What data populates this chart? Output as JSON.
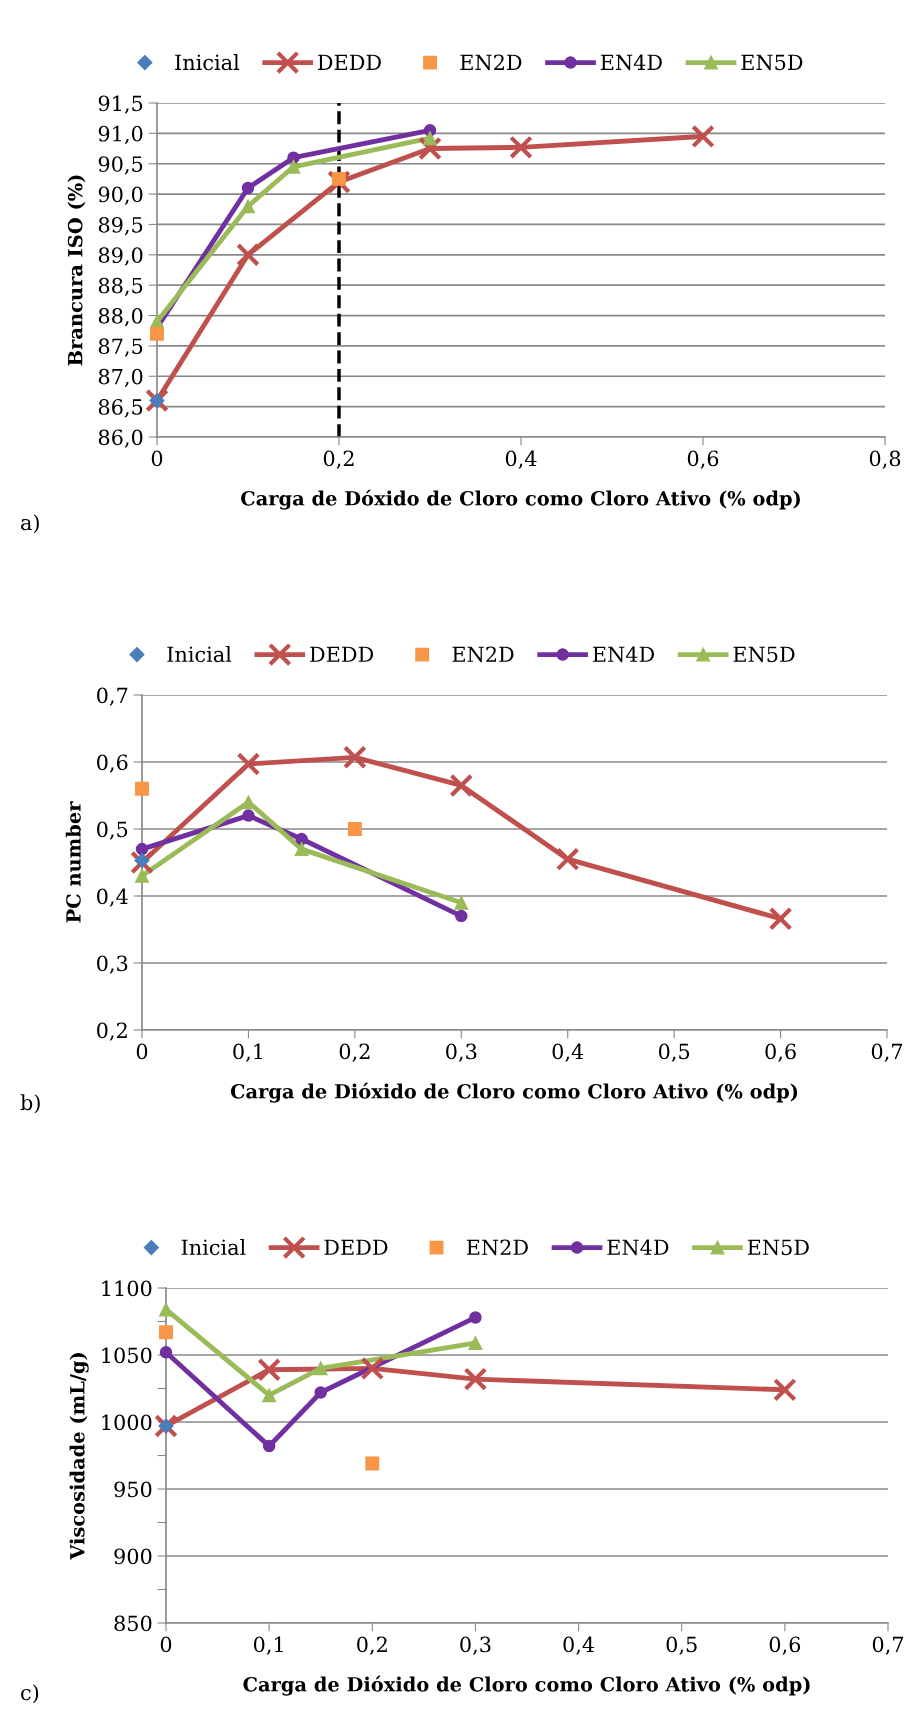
{
  "chart_data": [
    {
      "type": "line",
      "xlabel": "Carga de Dóxido de Cloro como Cloro Ativo (% odp)",
      "ylabel": "Brancura ISO (%)",
      "xlim": [
        0,
        0.8
      ],
      "xticks": [
        {
          "value": 0,
          "label": "0"
        },
        {
          "value": 0.2,
          "label": "0,2"
        },
        {
          "value": 0.4,
          "label": "0,4"
        },
        {
          "value": 0.6,
          "label": "0,6"
        },
        {
          "value": 0.8,
          "label": "0,8"
        }
      ],
      "ylim": [
        86,
        91.5
      ],
      "yticks": [
        {
          "value": 86,
          "label": "86,0"
        },
        {
          "value": 86.5,
          "label": "86,5"
        },
        {
          "value": 87,
          "label": "87,0"
        },
        {
          "value": 87.5,
          "label": "87,5"
        },
        {
          "value": 88,
          "label": "88,0"
        },
        {
          "value": 88.5,
          "label": "88,5"
        },
        {
          "value": 89,
          "label": "89,0"
        },
        {
          "value": 89.5,
          "label": "89,5"
        },
        {
          "value": 90,
          "label": "90,0"
        },
        {
          "value": 90.5,
          "label": "90,5"
        },
        {
          "value": 91,
          "label": "91,0"
        },
        {
          "value": 91.5,
          "label": "91,5"
        }
      ],
      "grid": "y",
      "legend": "top",
      "annotations": [
        "a)"
      ],
      "ref_lines": [
        {
          "axis": "x",
          "value": 0.2,
          "label": null,
          "color": "#000000",
          "line_style": "dashed"
        }
      ],
      "series": [
        {
          "name": "Inicial",
          "type": "scatter",
          "marker": "diamond",
          "color": "#4a7ebb",
          "x": [
            0
          ],
          "values": [
            86.6
          ]
        },
        {
          "name": "DEDD",
          "marker": "cross",
          "color": "#c0504d",
          "x": [
            0,
            0.1,
            0.2,
            0.3,
            0.4,
            0.6
          ],
          "values": [
            86.6,
            89.0,
            90.2,
            90.75,
            90.77,
            90.95
          ]
        },
        {
          "name": "EN2D",
          "type": "scatter",
          "marker": "square",
          "color": "#f79646",
          "x": [
            0,
            0.2
          ],
          "values": [
            87.7,
            90.25
          ]
        },
        {
          "name": "EN4D",
          "marker": "circle",
          "color": "#7030a0",
          "x": [
            0,
            0.1,
            0.15,
            0.3
          ],
          "values": [
            87.8,
            90.1,
            90.6,
            91.05
          ]
        },
        {
          "name": "EN5D",
          "marker": "triangle",
          "color": "#9bbb59",
          "x": [
            0,
            0.1,
            0.15,
            0.3
          ],
          "values": [
            87.9,
            89.8,
            90.45,
            90.92
          ]
        }
      ]
    },
    {
      "type": "line",
      "xlabel": "Carga de Dióxido de Cloro como Cloro Ativo (% odp)",
      "ylabel": "PC number",
      "xlim": [
        0,
        0.7
      ],
      "xticks": [
        {
          "value": 0,
          "label": "0"
        },
        {
          "value": 0.1,
          "label": "0,1"
        },
        {
          "value": 0.2,
          "label": "0,2"
        },
        {
          "value": 0.3,
          "label": "0,3"
        },
        {
          "value": 0.4,
          "label": "0,4"
        },
        {
          "value": 0.5,
          "label": "0,5"
        },
        {
          "value": 0.6,
          "label": "0,6"
        },
        {
          "value": 0.7,
          "label": "0,7"
        }
      ],
      "ylim": [
        0.2,
        0.7
      ],
      "yticks": [
        {
          "value": 0.2,
          "label": "0,2"
        },
        {
          "value": 0.3,
          "label": "0,3"
        },
        {
          "value": 0.4,
          "label": "0,4"
        },
        {
          "value": 0.5,
          "label": "0,5"
        },
        {
          "value": 0.6,
          "label": "0,6"
        },
        {
          "value": 0.7,
          "label": "0,7"
        }
      ],
      "grid": "y",
      "legend": "top",
      "annotations": [
        "b)"
      ],
      "series": [
        {
          "name": "Inicial",
          "type": "scatter",
          "marker": "diamond",
          "color": "#4a7ebb",
          "x": [
            0
          ],
          "values": [
            0.453
          ]
        },
        {
          "name": "DEDD",
          "marker": "cross",
          "color": "#c0504d",
          "x": [
            0,
            0.1,
            0.2,
            0.3,
            0.4,
            0.6
          ],
          "values": [
            0.45,
            0.597,
            0.607,
            0.565,
            0.455,
            0.366
          ]
        },
        {
          "name": "EN2D",
          "type": "scatter",
          "marker": "square",
          "color": "#f79646",
          "x": [
            0,
            0.2
          ],
          "values": [
            0.56,
            0.5
          ]
        },
        {
          "name": "EN4D",
          "marker": "circle",
          "color": "#7030a0",
          "x": [
            0,
            0.1,
            0.15,
            0.3
          ],
          "values": [
            0.47,
            0.52,
            0.485,
            0.37
          ]
        },
        {
          "name": "EN5D",
          "marker": "triangle",
          "color": "#9bbb59",
          "x": [
            0,
            0.1,
            0.15,
            0.3
          ],
          "values": [
            0.43,
            0.54,
            0.47,
            0.39
          ]
        }
      ]
    },
    {
      "type": "line",
      "xlabel": "Carga de Dióxido de Cloro como Cloro Ativo (% odp)",
      "ylabel": "Viscosidade (mL/g)",
      "xlim": [
        0,
        0.7
      ],
      "xticks": [
        {
          "value": 0,
          "label": "0"
        },
        {
          "value": 0.1,
          "label": "0,1"
        },
        {
          "value": 0.2,
          "label": "0,2"
        },
        {
          "value": 0.3,
          "label": "0,3"
        },
        {
          "value": 0.4,
          "label": "0,4"
        },
        {
          "value": 0.5,
          "label": "0,5"
        },
        {
          "value": 0.6,
          "label": "0,6"
        },
        {
          "value": 0.7,
          "label": "0,7"
        }
      ],
      "ylim": [
        850,
        1100
      ],
      "yticks": [
        850,
        {
          "value": 875,
          "label": null
        },
        900,
        {
          "value": 925,
          "label": null
        },
        950,
        {
          "value": 975,
          "label": null
        },
        1000,
        {
          "value": 1025,
          "label": null
        },
        1050,
        {
          "value": 1075,
          "label": null
        },
        1100
      ],
      "grid": "y",
      "legend": "top",
      "annotations": [
        "c)"
      ],
      "series": [
        {
          "name": "Inicial",
          "type": "scatter",
          "marker": "diamond",
          "color": "#4a7ebb",
          "x": [
            0
          ],
          "values": [
            997
          ]
        },
        {
          "name": "DEDD",
          "marker": "cross",
          "color": "#c0504d",
          "x": [
            0,
            0.1,
            0.2,
            0.3,
            0.6
          ],
          "values": [
            997,
            1039,
            1040,
            1032,
            1024
          ]
        },
        {
          "name": "EN2D",
          "type": "scatter",
          "marker": "square",
          "color": "#f79646",
          "x": [
            0,
            0.2
          ],
          "values": [
            1067,
            969
          ]
        },
        {
          "name": "EN4D",
          "marker": "circle",
          "color": "#7030a0",
          "x": [
            0,
            0.1,
            0.15,
            0.3
          ],
          "values": [
            1052,
            982,
            1022,
            1078
          ]
        },
        {
          "name": "EN5D",
          "marker": "triangle",
          "color": "#9bbb59",
          "x": [
            0,
            0.1,
            0.15,
            0.3
          ],
          "values": [
            1084,
            1020,
            1040,
            1059
          ]
        }
      ]
    }
  ]
}
